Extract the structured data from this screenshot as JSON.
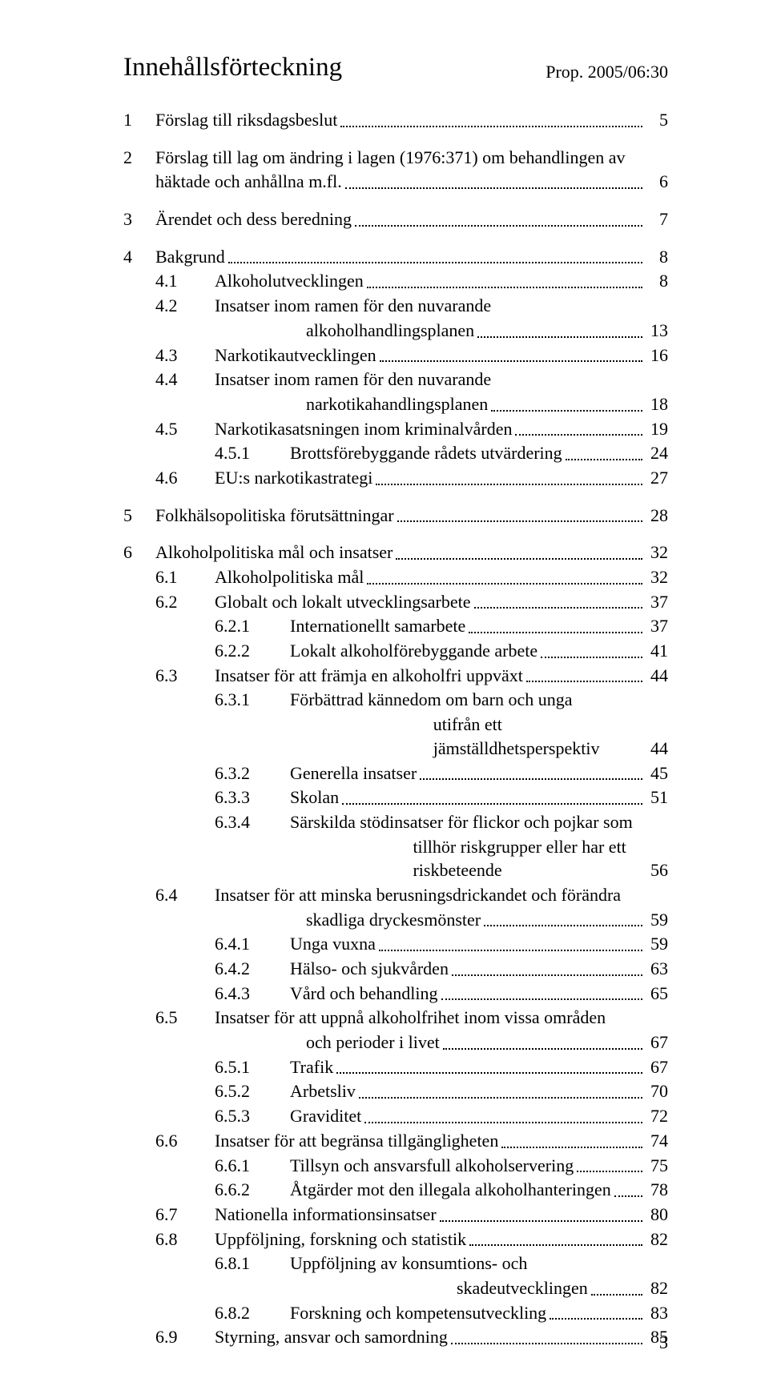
{
  "header": {
    "title": "Innehållsförteckning",
    "prop": "Prop. 2005/06:30"
  },
  "toc": [
    {
      "lvl": 1,
      "num": "1",
      "text": "Förslag till riksdagsbeslut",
      "page": "5",
      "gap": true
    },
    {
      "lvl": 1,
      "num": "2",
      "text": "Förslag till lag om ändring i lagen (1976:371) om behandlingen av",
      "cont": "häktade och anhållna m.fl.",
      "page": "6",
      "gap": true
    },
    {
      "lvl": 1,
      "num": "3",
      "text": "Ärendet och dess beredning",
      "page": "7",
      "gap": true
    },
    {
      "lvl": 1,
      "num": "4",
      "text": "Bakgrund",
      "page": "8"
    },
    {
      "lvl": 2,
      "num": "4.1",
      "text": "Alkoholutvecklingen",
      "page": "8"
    },
    {
      "lvl": 2,
      "num": "4.2",
      "text": "Insatser inom ramen för den nuvarande",
      "cont": "alkoholhandlingsplanen",
      "page": "13"
    },
    {
      "lvl": 2,
      "num": "4.3",
      "text": "Narkotikautvecklingen",
      "page": "16"
    },
    {
      "lvl": 2,
      "num": "4.4",
      "text": "Insatser inom ramen för den nuvarande",
      "cont": "narkotikahandlingsplanen",
      "page": "18"
    },
    {
      "lvl": 2,
      "num": "4.5",
      "text": "Narkotikasatsningen inom kriminalvården",
      "page": "19"
    },
    {
      "lvl": 3,
      "num": "4.5.1",
      "text": "Brottsförebyggande rådets utvärdering",
      "page": "24"
    },
    {
      "lvl": 2,
      "num": "4.6",
      "text": "EU:s narkotikastrategi",
      "page": "27",
      "gap": true
    },
    {
      "lvl": 1,
      "num": "5",
      "text": "Folkhälsopolitiska förutsättningar",
      "page": "28",
      "gap": true
    },
    {
      "lvl": 1,
      "num": "6",
      "text": "Alkoholpolitiska mål och insatser",
      "page": "32"
    },
    {
      "lvl": 2,
      "num": "6.1",
      "text": "Alkoholpolitiska mål",
      "page": "32"
    },
    {
      "lvl": 2,
      "num": "6.2",
      "text": "Globalt och lokalt utvecklingsarbete",
      "page": "37"
    },
    {
      "lvl": 3,
      "num": "6.2.1",
      "text": "Internationellt samarbete",
      "page": "37"
    },
    {
      "lvl": 3,
      "num": "6.2.2",
      "text": "Lokalt alkoholförebyggande arbete",
      "page": "41"
    },
    {
      "lvl": 2,
      "num": "6.3",
      "text": "Insatser för att främja en alkoholfri uppväxt",
      "page": "44"
    },
    {
      "lvl": 3,
      "num": "6.3.1",
      "text": "Förbättrad kännedom om barn och unga",
      "cont": "utifrån ett jämställdhetsperspektiv",
      "page": "44"
    },
    {
      "lvl": 3,
      "num": "6.3.2",
      "text": "Generella insatser",
      "page": "45"
    },
    {
      "lvl": 3,
      "num": "6.3.3",
      "text": "Skolan",
      "page": "51"
    },
    {
      "lvl": 3,
      "num": "6.3.4",
      "text": "Särskilda stödinsatser för flickor och pojkar som",
      "cont": "tillhör riskgrupper eller har ett riskbeteende",
      "page": "56"
    },
    {
      "lvl": 2,
      "num": "6.4",
      "text": "Insatser för att minska berusningsdrickandet och förändra",
      "cont": "skadliga dryckesmönster",
      "page": "59"
    },
    {
      "lvl": 3,
      "num": "6.4.1",
      "text": "Unga vuxna",
      "page": "59"
    },
    {
      "lvl": 3,
      "num": "6.4.2",
      "text": "Hälso- och sjukvården",
      "page": "63"
    },
    {
      "lvl": 3,
      "num": "6.4.3",
      "text": "Vård och behandling",
      "page": "65"
    },
    {
      "lvl": 2,
      "num": "6.5",
      "text": "Insatser för att uppnå alkoholfrihet inom vissa områden",
      "cont": "och perioder i livet",
      "page": "67"
    },
    {
      "lvl": 3,
      "num": "6.5.1",
      "text": "Trafik",
      "page": "67"
    },
    {
      "lvl": 3,
      "num": "6.5.2",
      "text": "Arbetsliv",
      "page": "70"
    },
    {
      "lvl": 3,
      "num": "6.5.3",
      "text": "Graviditet",
      "page": "72"
    },
    {
      "lvl": 2,
      "num": "6.6",
      "text": "Insatser för att begränsa tillgängligheten",
      "page": "74"
    },
    {
      "lvl": 3,
      "num": "6.6.1",
      "text": "Tillsyn och ansvarsfull alkoholservering",
      "page": "75"
    },
    {
      "lvl": 3,
      "num": "6.6.2",
      "text": "Åtgärder mot den illegala alkoholhanteringen",
      "page": "78"
    },
    {
      "lvl": 2,
      "num": "6.7",
      "text": "Nationella informationsinsatser",
      "page": "80"
    },
    {
      "lvl": 2,
      "num": "6.8",
      "text": "Uppföljning, forskning och statistik",
      "page": "82"
    },
    {
      "lvl": 3,
      "num": "6.8.1",
      "text": "Uppföljning av konsumtions- och",
      "cont": "skadeutvecklingen",
      "page": "82"
    },
    {
      "lvl": 3,
      "num": "6.8.2",
      "text": "Forskning och kompetensutveckling",
      "page": "83"
    },
    {
      "lvl": 2,
      "num": "6.9",
      "text": "Styrning, ansvar och samordning",
      "page": "85"
    }
  ],
  "footerPage": "3"
}
